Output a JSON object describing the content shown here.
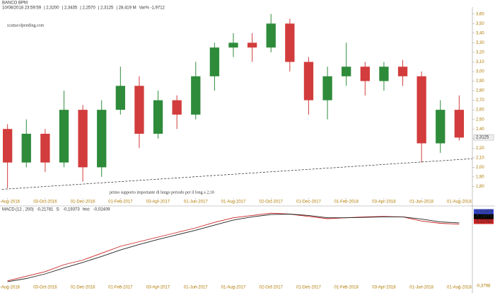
{
  "chart_data": [
    {
      "type": "candlestick",
      "title": "BANCO BPM",
      "info": [
        "10/08/2018 23:59:59",
        "| 2,3200",
        "| 2,3435",
        "| 2,2570",
        "| 2,3125",
        "| 28,419 M",
        "Var% -1,9712"
      ],
      "watermark": "scattacolpending.com",
      "annotation": "primo supporto importante di lungo periodo per il long a 2,10",
      "support_line": {
        "x": [
          -0.3,
          24.7
        ],
        "y": [
          1.77,
          2.09
        ]
      },
      "last_price": 2.3125,
      "last_price_label": "2,3125",
      "x": [
        0,
        1,
        2,
        3,
        4,
        5,
        6,
        7,
        8,
        9,
        10,
        11,
        12,
        13,
        14,
        15,
        16,
        17,
        18,
        19,
        20,
        21,
        22,
        23,
        24
      ],
      "open": [
        2.4,
        2.05,
        2.35,
        2.05,
        2.6,
        2.0,
        2.6,
        2.85,
        2.35,
        2.7,
        2.55,
        2.95,
        3.25,
        3.3,
        3.25,
        3.5,
        3.1,
        2.7,
        2.95,
        3.05,
        2.9,
        3.05,
        2.95,
        2.25,
        2.6
      ],
      "high": [
        2.45,
        2.5,
        2.4,
        2.8,
        2.65,
        2.7,
        3.05,
        2.95,
        2.8,
        2.75,
        3.1,
        3.3,
        3.4,
        3.4,
        3.6,
        3.55,
        3.15,
        3.05,
        3.3,
        3.1,
        3.1,
        3.12,
        3.0,
        2.7,
        2.75
      ],
      "low": [
        1.78,
        2.0,
        1.95,
        2.0,
        1.85,
        1.9,
        2.55,
        2.2,
        2.3,
        2.4,
        2.5,
        2.8,
        3.15,
        3.1,
        3.2,
        3.0,
        2.55,
        2.5,
        2.85,
        2.75,
        2.8,
        2.85,
        2.05,
        2.15,
        2.28
      ],
      "close": [
        2.05,
        2.35,
        2.05,
        2.6,
        2.0,
        2.6,
        2.85,
        2.35,
        2.7,
        2.55,
        2.95,
        3.25,
        3.3,
        3.25,
        3.5,
        3.1,
        2.7,
        2.95,
        3.05,
        2.9,
        3.05,
        2.95,
        2.25,
        2.6,
        2.31
      ],
      "up_color": "#2e8b3a",
      "down_color": "#d23c3c",
      "xlim": [
        -0.4,
        24.7
      ],
      "xticks": [
        {
          "value": 0,
          "label": "01-Aug-2016"
        },
        {
          "value": 2,
          "label": "03-Oct-2016"
        },
        {
          "value": 4,
          "label": "01-Dec-2016"
        },
        {
          "value": 6,
          "label": "01-Feb-2017"
        },
        {
          "value": 8,
          "label": "03-Apr-2017"
        },
        {
          "value": 10,
          "label": "01-Jun-2017"
        },
        {
          "value": 12,
          "label": "01-Aug-2017"
        },
        {
          "value": 14,
          "label": "02-Oct-2017"
        },
        {
          "value": 16,
          "label": "01-Dec-2017"
        },
        {
          "value": 18,
          "label": "01-Feb-2018"
        },
        {
          "value": 20,
          "label": "03-Apr-2018"
        },
        {
          "value": 22,
          "label": "01-Jun-2018"
        },
        {
          "value": 24,
          "label": "01-Aug-2018"
        }
      ],
      "ylim": [
        1.7,
        3.65
      ],
      "yticks": [
        {
          "value": 1.8,
          "label": "1,80"
        },
        {
          "value": 1.9,
          "label": "1,90"
        },
        {
          "value": 2.0,
          "label": "2,00"
        },
        {
          "value": 2.1,
          "label": "2,10"
        },
        {
          "value": 2.2,
          "label": "2,20"
        },
        {
          "value": 2.3,
          "label": "2,30"
        },
        {
          "value": 2.4,
          "label": "2,40"
        },
        {
          "value": 2.5,
          "label": "2,50"
        },
        {
          "value": 2.6,
          "label": "2,60"
        },
        {
          "value": 2.7,
          "label": "2,70"
        },
        {
          "value": 2.8,
          "label": "2,80"
        },
        {
          "value": 2.9,
          "label": "2,90"
        },
        {
          "value": 3.0,
          "label": "3,00"
        },
        {
          "value": 3.1,
          "label": "3,10"
        },
        {
          "value": 3.2,
          "label": "3,20"
        },
        {
          "value": 3.3,
          "label": "3,30"
        },
        {
          "value": 3.4,
          "label": "3,40"
        },
        {
          "value": 3.5,
          "label": "3,50"
        },
        {
          "value": 3.6,
          "label": "3,60"
        }
      ]
    },
    {
      "type": "line",
      "title": "MACD",
      "info": [
        "(12 , 200)",
        "-0,21781",
        "S:",
        "-0,19373",
        "hist:",
        "-0,02409"
      ],
      "box_labels": [
        {
          "label": "-0,02409",
          "color": "#3344cc"
        },
        {
          "label": "-0,19373",
          "color": "#000000"
        },
        {
          "label": "-0,21781",
          "color": "#cc2222"
        }
      ],
      "bottom_label": "-0,3798",
      "x": [
        0,
        1,
        2,
        3,
        4,
        5,
        6,
        7,
        8,
        9,
        10,
        11,
        12,
        13,
        14,
        15,
        16,
        17,
        18,
        19,
        20,
        21,
        22,
        23,
        24
      ],
      "series": [
        {
          "name": "MACD",
          "color": "#cc2222",
          "values": [
            -1.45,
            -1.35,
            -1.25,
            -1.1,
            -1.0,
            -0.85,
            -0.7,
            -0.6,
            -0.5,
            -0.4,
            -0.3,
            -0.18,
            -0.08,
            -0.03,
            0.02,
            0.0,
            -0.05,
            -0.1,
            -0.08,
            -0.06,
            -0.05,
            -0.06,
            -0.15,
            -0.2,
            -0.22
          ]
        },
        {
          "name": "S",
          "color": "#222222",
          "values": [
            -1.47,
            -1.4,
            -1.3,
            -1.17,
            -1.05,
            -0.92,
            -0.78,
            -0.66,
            -0.55,
            -0.45,
            -0.35,
            -0.24,
            -0.13,
            -0.06,
            -0.01,
            0.0,
            -0.03,
            -0.08,
            -0.08,
            -0.07,
            -0.06,
            -0.06,
            -0.11,
            -0.17,
            -0.19
          ]
        }
      ],
      "xlim": [
        -0.4,
        24.7
      ],
      "xticks": [
        {
          "value": 0,
          "label": "01-Aug-2016"
        },
        {
          "value": 2,
          "label": "03-Oct-2016"
        },
        {
          "value": 4,
          "label": "01-Dec-2016"
        },
        {
          "value": 6,
          "label": "01-Feb-2017"
        },
        {
          "value": 8,
          "label": "03-Apr-2017"
        },
        {
          "value": 10,
          "label": "01-Jun-2017"
        },
        {
          "value": 12,
          "label": "01-Aug-2017"
        },
        {
          "value": 14,
          "label": "02-Oct-2017"
        },
        {
          "value": 16,
          "label": "01-Dec-2017"
        },
        {
          "value": 18,
          "label": "01-Feb-2018"
        },
        {
          "value": 20,
          "label": "03-Apr-2018"
        },
        {
          "value": 22,
          "label": "01-Jun-2018"
        },
        {
          "value": 24,
          "label": "01-Aug-2018"
        }
      ],
      "ylim": [
        -1.5,
        0.1
      ]
    }
  ]
}
